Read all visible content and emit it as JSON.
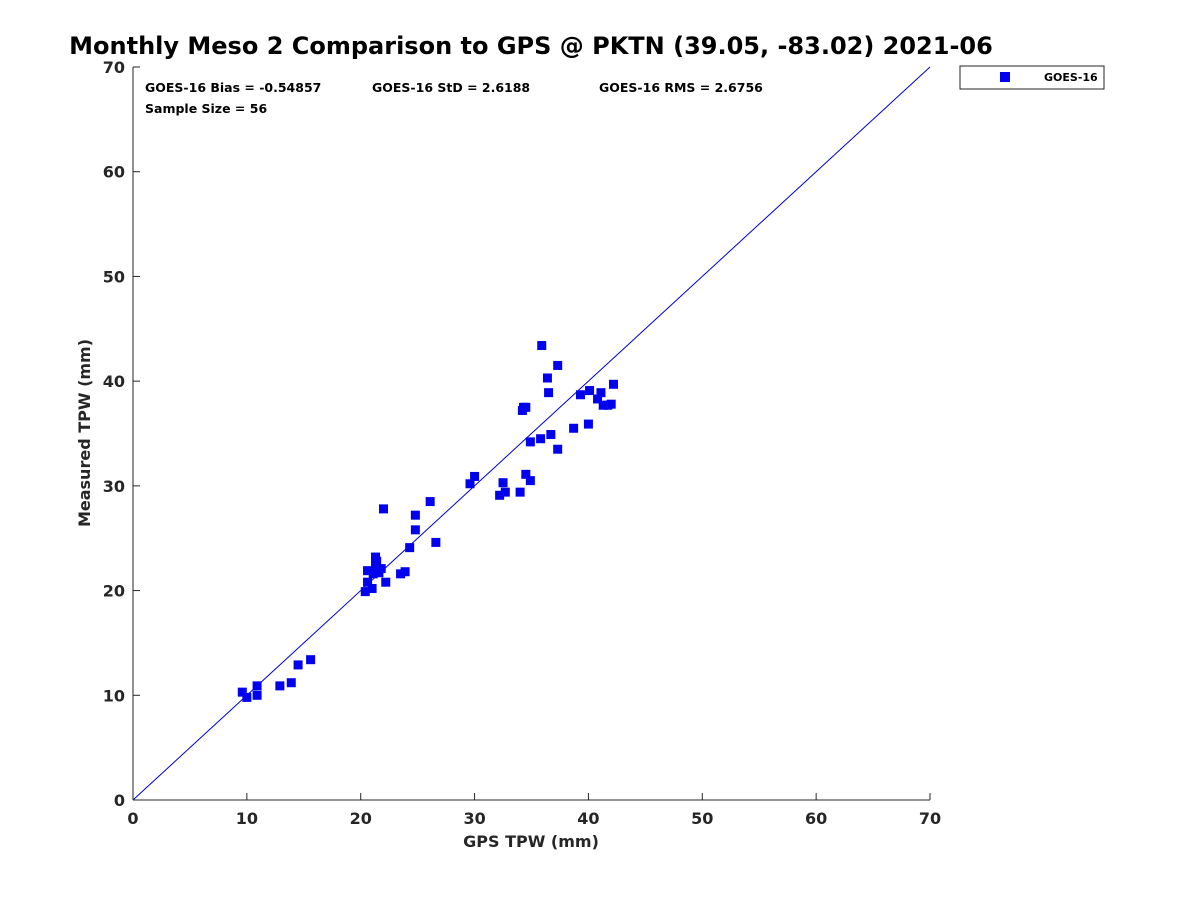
{
  "chart_data": {
    "type": "scatter",
    "title": "Monthly Meso 2 Comparison to GPS @ PKTN (39.05, -83.02) 2021-06",
    "xlabel": "GPS TPW (mm)",
    "ylabel": "Measured TPW (mm)",
    "xlim": [
      0,
      70
    ],
    "ylim": [
      0,
      70
    ],
    "xticks": [
      "0",
      "10",
      "20",
      "30",
      "40",
      "50",
      "60",
      "70"
    ],
    "yticks": [
      "0",
      "10",
      "20",
      "30",
      "40",
      "50",
      "60",
      "70"
    ],
    "grid": false,
    "legend_position": "outside-top-right",
    "reference_line": {
      "from": [
        0,
        0
      ],
      "to": [
        70,
        70
      ],
      "color": "#0000cc"
    },
    "stats": {
      "bias": "GOES-16 Bias = -0.54857",
      "std": "GOES-16 StD = 2.6188",
      "rms": "GOES-16 RMS = 2.6756",
      "sample": "Sample Size = 56"
    },
    "series": [
      {
        "name": "GOES-16",
        "color": "#0000ee",
        "marker": "square",
        "points": [
          [
            9.6,
            10.3
          ],
          [
            10.0,
            9.8
          ],
          [
            10.9,
            10.9
          ],
          [
            10.9,
            10.0
          ],
          [
            12.9,
            10.9
          ],
          [
            13.9,
            11.2
          ],
          [
            14.5,
            12.9
          ],
          [
            15.6,
            13.4
          ],
          [
            20.4,
            19.9
          ],
          [
            20.6,
            20.8
          ],
          [
            20.6,
            21.9
          ],
          [
            21.0,
            20.2
          ],
          [
            21.1,
            21.6
          ],
          [
            21.3,
            22.4
          ],
          [
            21.3,
            23.2
          ],
          [
            21.4,
            22.8
          ],
          [
            21.6,
            21.7
          ],
          [
            21.8,
            22.1
          ],
          [
            22.0,
            27.8
          ],
          [
            22.2,
            20.8
          ],
          [
            23.5,
            21.6
          ],
          [
            23.9,
            21.8
          ],
          [
            24.3,
            24.1
          ],
          [
            24.8,
            25.8
          ],
          [
            24.8,
            27.2
          ],
          [
            26.1,
            28.5
          ],
          [
            26.6,
            24.6
          ],
          [
            29.6,
            30.2
          ],
          [
            30.0,
            30.9
          ],
          [
            32.2,
            29.1
          ],
          [
            32.5,
            30.3
          ],
          [
            32.7,
            29.4
          ],
          [
            34.0,
            29.4
          ],
          [
            34.2,
            37.2
          ],
          [
            34.3,
            37.5
          ],
          [
            34.5,
            37.5
          ],
          [
            34.5,
            31.1
          ],
          [
            34.9,
            30.5
          ],
          [
            34.9,
            34.2
          ],
          [
            35.8,
            34.5
          ],
          [
            35.9,
            43.4
          ],
          [
            36.4,
            40.3
          ],
          [
            36.5,
            38.9
          ],
          [
            36.7,
            34.9
          ],
          [
            37.3,
            41.5
          ],
          [
            37.3,
            33.5
          ],
          [
            38.7,
            35.5
          ],
          [
            39.3,
            38.7
          ],
          [
            40.0,
            35.9
          ],
          [
            40.1,
            39.1
          ],
          [
            40.8,
            38.3
          ],
          [
            41.1,
            38.9
          ],
          [
            41.3,
            37.7
          ],
          [
            41.7,
            37.7
          ],
          [
            42.0,
            37.8
          ],
          [
            42.2,
            39.7
          ]
        ]
      }
    ]
  }
}
